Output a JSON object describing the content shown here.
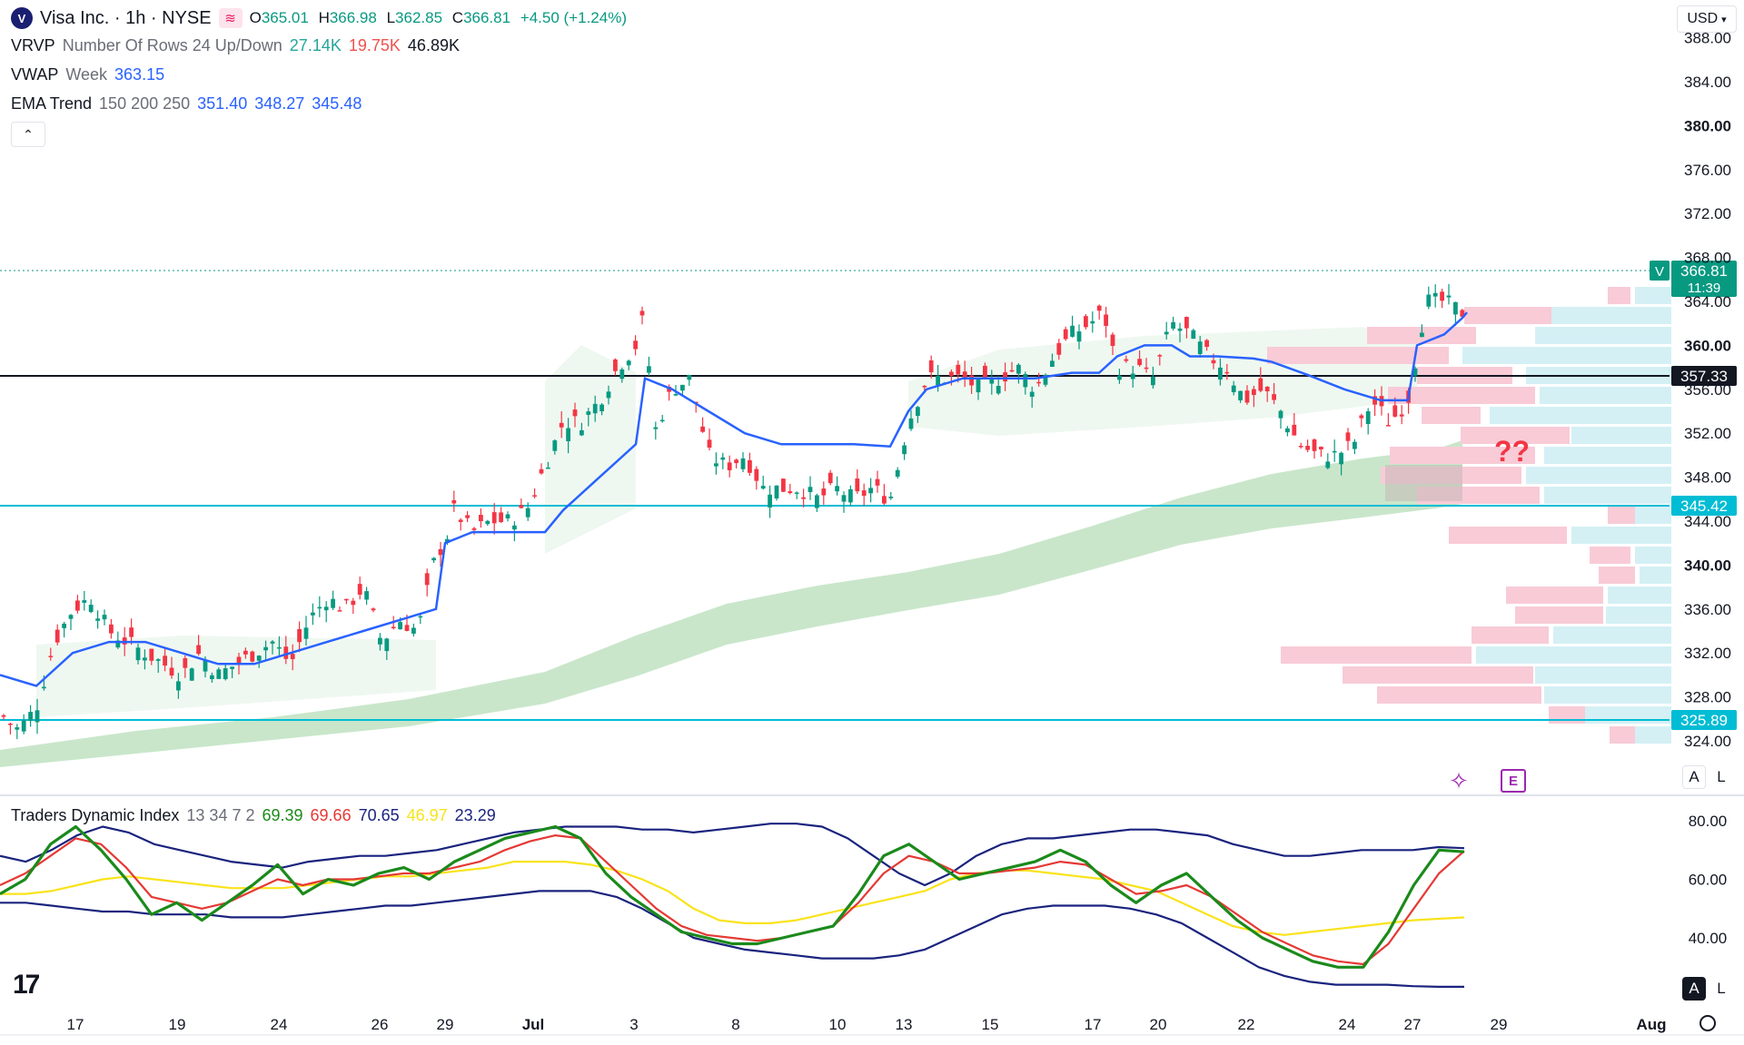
{
  "symbol": {
    "logo_letter": "V",
    "title": "Visa Inc. · 1h · NYSE",
    "open_label": "O",
    "open": "365.01",
    "high_label": "H",
    "high": "366.98",
    "low_label": "L",
    "low": "362.85",
    "close_label": "C",
    "close": "366.81",
    "change": "+4.50 (+1.24%)"
  },
  "indicators": {
    "vrvp": {
      "name": "VRVP",
      "params": "Number Of Rows 24 Up/Down",
      "up": "27.14K",
      "down": "19.75K",
      "total": "46.89K"
    },
    "vwap": {
      "name": "VWAP",
      "params": "Week",
      "value": "363.15"
    },
    "ema": {
      "name": "EMA Trend",
      "params": "150 200 250",
      "v1": "351.40",
      "v2": "348.27",
      "v3": "345.48"
    },
    "tdi": {
      "name": "Traders Dynamic Index",
      "params": "13 34 7 2",
      "v1": "69.39",
      "v2": "69.66",
      "v3": "70.65",
      "v4": "46.97",
      "v5": "23.29"
    }
  },
  "currency": "USD",
  "price_axis": {
    "ticks": [
      "388.00",
      "384.00",
      "380.00",
      "376.00",
      "372.00",
      "368.00",
      "364.00",
      "360.00",
      "356.00",
      "352.00",
      "348.00",
      "344.00",
      "340.00",
      "336.00",
      "332.00",
      "328.00",
      "324.00"
    ],
    "bold_ticks": [
      "380.00",
      "360.00",
      "340.00"
    ],
    "last_price": "366.81",
    "countdown": "11:39",
    "last_symbol": "V",
    "level_labels": [
      {
        "value": "357.33",
        "color": "#131722"
      },
      {
        "value": "345.42",
        "color": "#00bcd4"
      },
      {
        "value": "325.89",
        "color": "#00bcd4"
      }
    ]
  },
  "tdi_axis": {
    "ticks": [
      "80.00",
      "60.00",
      "40.00"
    ]
  },
  "time_axis": {
    "labels": [
      "17",
      "19",
      "24",
      "26",
      "29",
      "Jul",
      "3",
      "8",
      "10",
      "13",
      "15",
      "17",
      "20",
      "22",
      "24",
      "27",
      "29",
      "Aug"
    ],
    "bold_labels": [
      "Jul",
      "Aug"
    ]
  },
  "annotation": {
    "text": "??",
    "color": "#f23645"
  },
  "scale_buttons": {
    "auto": "A",
    "log": "L"
  },
  "colors": {
    "up": "#089981",
    "down": "#f23645",
    "vwap": "#2962ff",
    "ema_fill": "#a5d6a7",
    "support": "#00bcd4",
    "resistance": "#131722",
    "vp_up": "#d4f0f5",
    "vp_down": "#f8cbd7",
    "tdi_green": "#1b8a1b",
    "tdi_red": "#e53935",
    "tdi_yellow": "#f9e31a",
    "tdi_band": "#1a237e"
  },
  "chart_data": {
    "type": "candlestick",
    "series": [
      {
        "name": "VWAP Week",
        "last": 363.15
      },
      {
        "name": "EMA 150",
        "last": 351.4
      },
      {
        "name": "EMA 200",
        "last": 348.27
      },
      {
        "name": "EMA 250",
        "last": 345.48
      }
    ],
    "levels": [
      357.33,
      345.42,
      325.89
    ],
    "ylim": [
      323,
      389
    ],
    "ohlc_last": {
      "open": 365.01,
      "high": 366.98,
      "low": 362.85,
      "close": 366.81
    },
    "tdi_ylim": [
      20,
      85
    ],
    "tdi_last": {
      "rsi": 69.39,
      "signal": 69.66,
      "upper": 70.65,
      "mid": 46.97,
      "lower": 23.29
    },
    "volume_profile_rows": 24
  }
}
